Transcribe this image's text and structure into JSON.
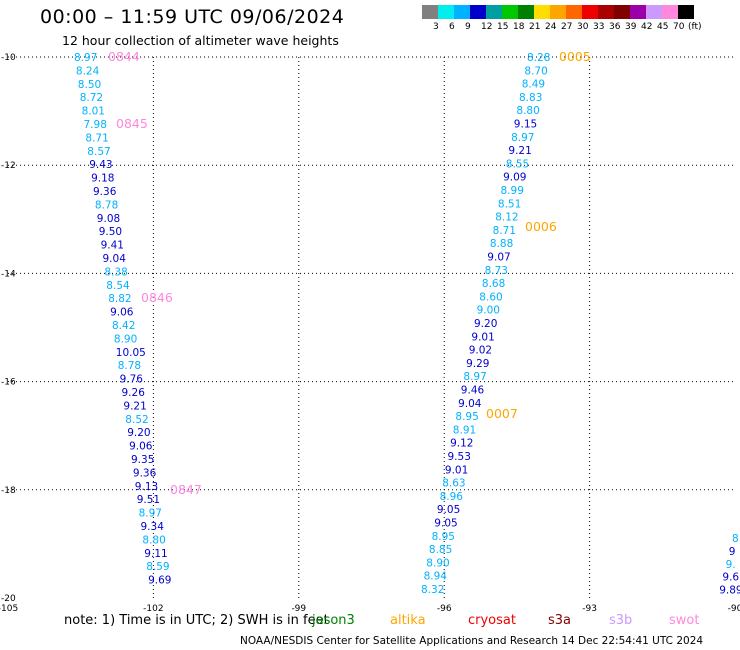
{
  "title": "00:00 – 11:59 UTC 09/06/2024",
  "subtitle": "12 hour collection of altimeter wave heights",
  "scale": {
    "colors": [
      "#808080",
      "#00eeee",
      "#00b2ff",
      "#0000cd",
      "#00a0a0",
      "#00c800",
      "#008000",
      "#ffdd00",
      "#ffa500",
      "#ff6600",
      "#ee0000",
      "#aa0000",
      "#800000",
      "#9900aa",
      "#cc99ff",
      "#ff88dd",
      "#000000"
    ],
    "labels": [
      "3",
      "6",
      "9",
      "12",
      "15",
      "18",
      "21",
      "24",
      "27",
      "30",
      "33",
      "36",
      "39",
      "42",
      "45",
      "70",
      "(ft)"
    ]
  },
  "axes": {
    "lat_labels": [
      "-10",
      "-12",
      "-14",
      "-16",
      "-18",
      "-20"
    ],
    "lon_labels": [
      "-105",
      "-102",
      "-99",
      "-96",
      "-93",
      "-90"
    ],
    "lat_range": [
      -20,
      -10
    ],
    "lon_range": [
      -105,
      -90
    ]
  },
  "tracks": [
    {
      "id": "t1",
      "points": [
        {
          "v": "8.97",
          "c": "#00b2ff"
        },
        {
          "v": "8.24",
          "c": "#00b2ff"
        },
        {
          "v": "8.50",
          "c": "#00b2ff"
        },
        {
          "v": "8.72",
          "c": "#00b2ff"
        },
        {
          "v": "8.01",
          "c": "#00b2ff"
        },
        {
          "v": "7.98",
          "c": "#00b2ff"
        },
        {
          "v": "8.71",
          "c": "#00b2ff"
        },
        {
          "v": "8.57",
          "c": "#00b2ff"
        },
        {
          "v": "9.43",
          "c": "#0000cd"
        },
        {
          "v": "9.18",
          "c": "#0000cd"
        },
        {
          "v": "9.36",
          "c": "#0000cd"
        },
        {
          "v": "8.78",
          "c": "#00b2ff"
        },
        {
          "v": "9.08",
          "c": "#0000cd"
        },
        {
          "v": "9.50",
          "c": "#0000cd"
        },
        {
          "v": "9.41",
          "c": "#0000cd"
        },
        {
          "v": "9.04",
          "c": "#0000cd"
        },
        {
          "v": "8.38",
          "c": "#00b2ff"
        },
        {
          "v": "8.54",
          "c": "#00b2ff"
        },
        {
          "v": "8.82",
          "c": "#00b2ff"
        },
        {
          "v": "9.06",
          "c": "#0000cd"
        },
        {
          "v": "8.42",
          "c": "#00b2ff"
        },
        {
          "v": "8.90",
          "c": "#00b2ff"
        },
        {
          "v": "10.05",
          "c": "#0000cd"
        },
        {
          "v": "8.78",
          "c": "#00b2ff"
        },
        {
          "v": "9.76",
          "c": "#0000cd"
        },
        {
          "v": "9.26",
          "c": "#0000cd"
        },
        {
          "v": "9.21",
          "c": "#0000cd"
        },
        {
          "v": "8.52",
          "c": "#00b2ff"
        },
        {
          "v": "9.20",
          "c": "#0000cd"
        },
        {
          "v": "9.06",
          "c": "#0000cd"
        },
        {
          "v": "9.35",
          "c": "#0000cd"
        },
        {
          "v": "9.36",
          "c": "#0000cd"
        },
        {
          "v": "9.13",
          "c": "#0000cd"
        },
        {
          "v": "9.51",
          "c": "#0000cd"
        },
        {
          "v": "8.97",
          "c": "#00b2ff"
        },
        {
          "v": "9.34",
          "c": "#0000cd"
        },
        {
          "v": "8.80",
          "c": "#00b2ff"
        },
        {
          "v": "9.11",
          "c": "#0000cd"
        },
        {
          "v": "8.59",
          "c": "#00b2ff"
        },
        {
          "v": "9.69",
          "c": "#0000cd"
        }
      ]
    },
    {
      "id": "t2",
      "points": [
        {
          "v": "8.28",
          "c": "#00b2ff"
        },
        {
          "v": "8.70",
          "c": "#00b2ff"
        },
        {
          "v": "8.49",
          "c": "#00b2ff"
        },
        {
          "v": "8.83",
          "c": "#00b2ff"
        },
        {
          "v": "8.80",
          "c": "#00b2ff"
        },
        {
          "v": "9.15",
          "c": "#0000cd"
        },
        {
          "v": "8.97",
          "c": "#00b2ff"
        },
        {
          "v": "9.21",
          "c": "#0000cd"
        },
        {
          "v": "8.55",
          "c": "#00b2ff"
        },
        {
          "v": "9.09",
          "c": "#0000cd"
        },
        {
          "v": "8.99",
          "c": "#00b2ff"
        },
        {
          "v": "8.51",
          "c": "#00b2ff"
        },
        {
          "v": "8.12",
          "c": "#00b2ff"
        },
        {
          "v": "8.71",
          "c": "#00b2ff"
        },
        {
          "v": "8.88",
          "c": "#00b2ff"
        },
        {
          "v": "9.07",
          "c": "#0000cd"
        },
        {
          "v": "8.73",
          "c": "#00b2ff"
        },
        {
          "v": "8.68",
          "c": "#00b2ff"
        },
        {
          "v": "8.60",
          "c": "#00b2ff"
        },
        {
          "v": "9.00",
          "c": "#00b2ff"
        },
        {
          "v": "9.20",
          "c": "#0000cd"
        },
        {
          "v": "9.01",
          "c": "#0000cd"
        },
        {
          "v": "9.02",
          "c": "#0000cd"
        },
        {
          "v": "9.29",
          "c": "#0000cd"
        },
        {
          "v": "8.97",
          "c": "#00b2ff"
        },
        {
          "v": "9.46",
          "c": "#0000cd"
        },
        {
          "v": "9.04",
          "c": "#0000cd"
        },
        {
          "v": "8.95",
          "c": "#00b2ff"
        },
        {
          "v": "8.91",
          "c": "#00b2ff"
        },
        {
          "v": "9.12",
          "c": "#0000cd"
        },
        {
          "v": "9.53",
          "c": "#0000cd"
        },
        {
          "v": "9.01",
          "c": "#0000cd"
        },
        {
          "v": "8.63",
          "c": "#00b2ff"
        },
        {
          "v": "8.96",
          "c": "#00b2ff"
        },
        {
          "v": "9.05",
          "c": "#0000cd"
        },
        {
          "v": "9.05",
          "c": "#0000cd"
        },
        {
          "v": "8.95",
          "c": "#00b2ff"
        },
        {
          "v": "8.85",
          "c": "#00b2ff"
        },
        {
          "v": "8.90",
          "c": "#00b2ff"
        },
        {
          "v": "8.94",
          "c": "#00b2ff"
        },
        {
          "v": "8.32",
          "c": "#00b2ff"
        }
      ]
    },
    {
      "id": "t3",
      "points": [
        {
          "v": "8",
          "c": "#00b2ff"
        },
        {
          "v": "9",
          "c": "#0000cd"
        },
        {
          "v": "9.",
          "c": "#00b2ff"
        },
        {
          "v": "9.6",
          "c": "#0000cd"
        },
        {
          "v": "9.89",
          "c": "#0000cd"
        }
      ]
    }
  ],
  "time_marks": [
    {
      "v": "0844",
      "c": "#ff88dd"
    },
    {
      "v": "0845",
      "c": "#ff88dd"
    },
    {
      "v": "0846",
      "c": "#ff88dd"
    },
    {
      "v": "0847",
      "c": "#ff88dd"
    },
    {
      "v": "0005",
      "c": "#ffa500"
    },
    {
      "v": "0006",
      "c": "#ffa500"
    },
    {
      "v": "0007",
      "c": "#ffa500"
    }
  ],
  "note": "note: 1) Time is in UTC; 2) SWH is in feet",
  "satellites": [
    {
      "name": "jason3",
      "color": "#008000"
    },
    {
      "name": "altika",
      "color": "#ffa500"
    },
    {
      "name": "cryosat",
      "color": "#ee0000"
    },
    {
      "name": "s3a",
      "color": "#800000"
    },
    {
      "name": "s3b",
      "color": "#cc99ff"
    },
    {
      "name": "swot",
      "color": "#ff88dd"
    }
  ],
  "footer": "NOAA/NESDIS Center for Satellite Applications and Research    14 Dec 22:54:41 UTC 2024"
}
